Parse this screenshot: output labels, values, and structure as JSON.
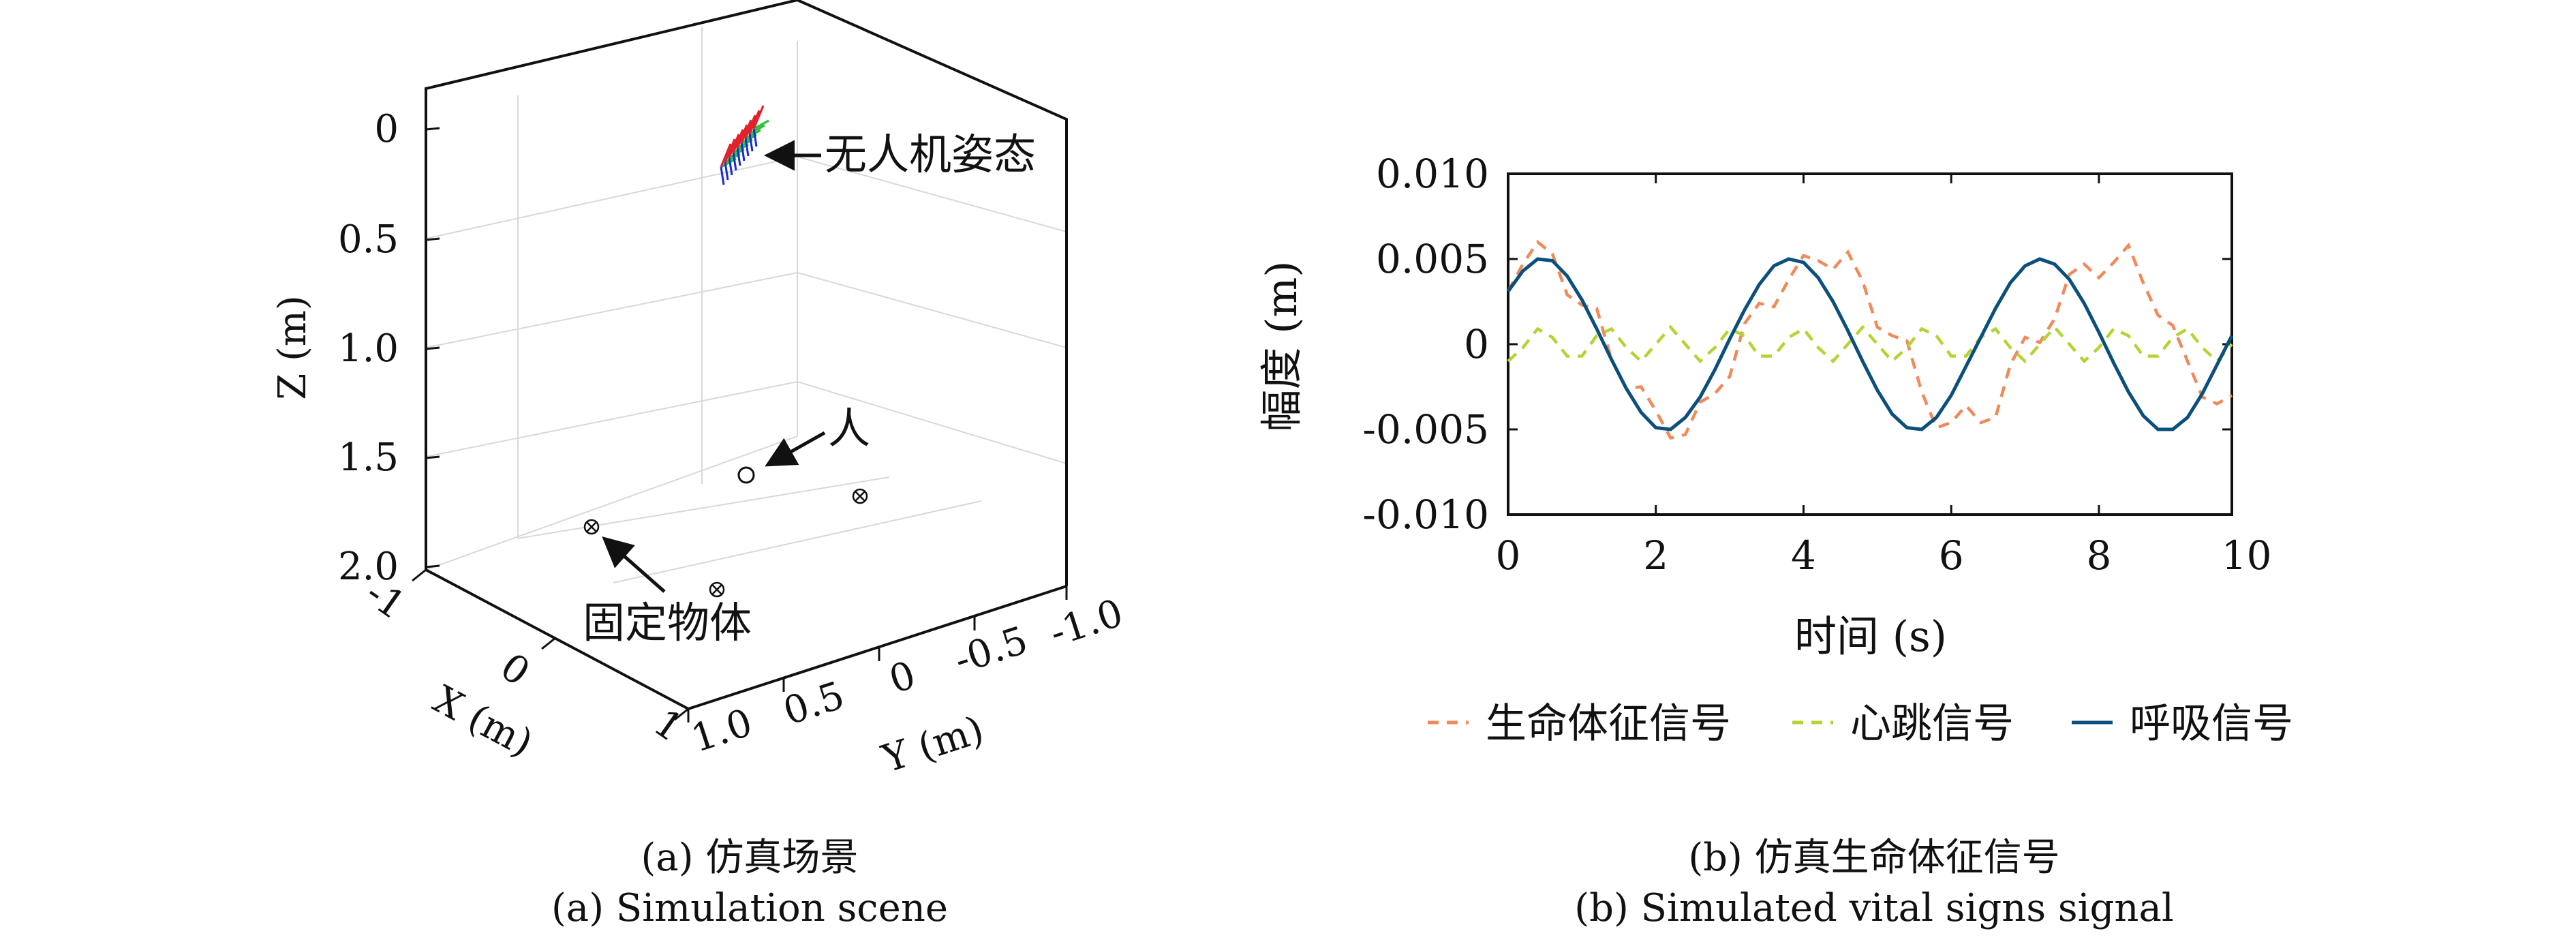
{
  "scene": {
    "caption_cn": "(a) 仿真场景",
    "caption_en": "(a) Simulation scene",
    "z_axis_label": "Z (m)",
    "x_axis_label": "X (m)",
    "y_axis_label": "Y (m)",
    "z_ticks": [
      "0",
      "0.5",
      "1.0",
      "1.5",
      "2.0"
    ],
    "x_ticks": [
      "-1",
      "0",
      "1"
    ],
    "y_ticks": [
      "1.0",
      "0.5",
      "0",
      "-0.5",
      "-1.0"
    ],
    "annotations": {
      "drone": "无人机姿态",
      "person": "人",
      "fixed_object": "固定物体"
    },
    "colors": {
      "drone_red": "#e0202a",
      "drone_green": "#22c02a",
      "drone_blue": "#1a2ad8"
    }
  },
  "chart_data": {
    "type": "line",
    "caption_cn": "(b) 仿真生命体征信号",
    "caption_en": "(b) Simulated vital signs signal",
    "xlabel": "时间 (s)",
    "ylabel": "幅度 (m)",
    "xlim": [
      0,
      9.8
    ],
    "ylim": [
      -0.01,
      0.01
    ],
    "x_ticks": [
      0,
      2,
      4,
      6,
      8,
      10
    ],
    "x_tick_labels": [
      "0",
      "2",
      "4",
      "6",
      "8",
      "10"
    ],
    "y_ticks": [
      0.01,
      0.005,
      0,
      -0.005,
      -0.01
    ],
    "y_tick_labels": [
      "0.010",
      "0.005",
      "0",
      "-0.005",
      "-0.010"
    ],
    "legend_position": "bottom",
    "series": [
      {
        "name": "生命体征信号",
        "color": "#f08a5a",
        "dash": "dashed",
        "x": [
          0,
          0.2,
          0.4,
          0.6,
          0.8,
          1.0,
          1.2,
          1.4,
          1.6,
          1.8,
          2.0,
          2.2,
          2.4,
          2.6,
          2.8,
          3.0,
          3.2,
          3.4,
          3.6,
          3.8,
          4.0,
          4.2,
          4.4,
          4.6,
          4.8,
          5.0,
          5.2,
          5.4,
          5.6,
          5.8,
          6.0,
          6.2,
          6.4,
          6.6,
          6.8,
          7.0,
          7.2,
          7.4,
          7.6,
          7.8,
          8.0,
          8.2,
          8.4,
          8.6,
          8.8,
          9.0,
          9.2,
          9.4,
          9.6,
          9.8
        ],
        "values": [
          0.0031,
          0.0047,
          0.006,
          0.0053,
          0.0029,
          0.0023,
          0.0021,
          -0.0009,
          -0.0026,
          -0.0025,
          -0.0039,
          -0.0055,
          -0.0053,
          -0.0034,
          -0.0029,
          -0.0019,
          0.0012,
          0.0024,
          0.0022,
          0.0038,
          0.0052,
          0.0049,
          0.0044,
          0.0054,
          0.0037,
          0.001,
          0.0005,
          0.0002,
          -0.0028,
          -0.0049,
          -0.0046,
          -0.0036,
          -0.0046,
          -0.0043,
          -0.0012,
          0.0004,
          0.0001,
          0.0015,
          0.0041,
          0.0047,
          0.0039,
          0.0048,
          0.0058,
          0.0036,
          0.0017,
          0.0011,
          -0.001,
          -0.0031,
          -0.0035,
          -0.003
        ]
      },
      {
        "name": "心跳信号",
        "color": "#b5d334",
        "dash": "dashed",
        "x": [
          0,
          0.2,
          0.4,
          0.6,
          0.8,
          1.0,
          1.2,
          1.4,
          1.6,
          1.8,
          2.0,
          2.2,
          2.4,
          2.6,
          2.8,
          3.0,
          3.2,
          3.4,
          3.6,
          3.8,
          4.0,
          4.2,
          4.4,
          4.6,
          4.8,
          5.0,
          5.2,
          5.4,
          5.6,
          5.8,
          6.0,
          6.2,
          6.4,
          6.6,
          6.8,
          7.0,
          7.2,
          7.4,
          7.6,
          7.8,
          8.0,
          8.2,
          8.4,
          8.6,
          8.8,
          9.0,
          9.2,
          9.4,
          9.6,
          9.8
        ],
        "values": [
          -0.001,
          -0.0002,
          0.0009,
          0.0004,
          -0.0007,
          -0.0007,
          0.0005,
          0.0009,
          -0.0002,
          -0.001,
          0.0,
          0.001,
          0.0,
          -0.001,
          -0.0002,
          0.0009,
          0.0005,
          -0.0007,
          -0.0007,
          0.0004,
          0.0009,
          -0.0002,
          -0.001,
          0.0,
          0.001,
          0.0,
          -0.001,
          -0.0002,
          0.0009,
          0.0005,
          -0.0007,
          -0.0007,
          0.0004,
          0.0009,
          -0.0002,
          -0.001,
          0.0,
          0.001,
          0.0,
          -0.001,
          -0.0002,
          0.0009,
          0.0005,
          -0.0007,
          -0.0007,
          0.0004,
          0.0009,
          -0.0002,
          -0.001,
          0.0
        ]
      },
      {
        "name": "呼吸信号",
        "color": "#0b4f7c",
        "dash": "solid",
        "x": [
          0,
          0.2,
          0.4,
          0.6,
          0.8,
          1.0,
          1.2,
          1.4,
          1.6,
          1.8,
          2.0,
          2.2,
          2.4,
          2.6,
          2.8,
          3.0,
          3.2,
          3.4,
          3.6,
          3.8,
          4.0,
          4.2,
          4.4,
          4.6,
          4.8,
          5.0,
          5.2,
          5.4,
          5.6,
          5.8,
          6.0,
          6.2,
          6.4,
          6.6,
          6.8,
          7.0,
          7.2,
          7.4,
          7.6,
          7.8,
          8.0,
          8.2,
          8.4,
          8.6,
          8.8,
          9.0,
          9.2,
          9.4,
          9.6,
          9.8
        ],
        "values": [
          0.0031,
          0.0043,
          0.005,
          0.0049,
          0.004,
          0.0026,
          0.0009,
          -0.0009,
          -0.0026,
          -0.004,
          -0.0049,
          -0.005,
          -0.0043,
          -0.0031,
          -0.0015,
          0.0003,
          0.002,
          0.0035,
          0.0046,
          0.005,
          0.0048,
          0.0039,
          0.0025,
          0.0008,
          -0.001,
          -0.0027,
          -0.0041,
          -0.0049,
          -0.005,
          -0.0043,
          -0.003,
          -0.0013,
          0.0004,
          0.0021,
          0.0036,
          0.0046,
          0.005,
          0.0047,
          0.0038,
          0.0024,
          0.0007,
          -0.0011,
          -0.0028,
          -0.0042,
          -0.005,
          -0.005,
          -0.0043,
          -0.0029,
          -0.0012,
          0.0005
        ]
      }
    ]
  }
}
